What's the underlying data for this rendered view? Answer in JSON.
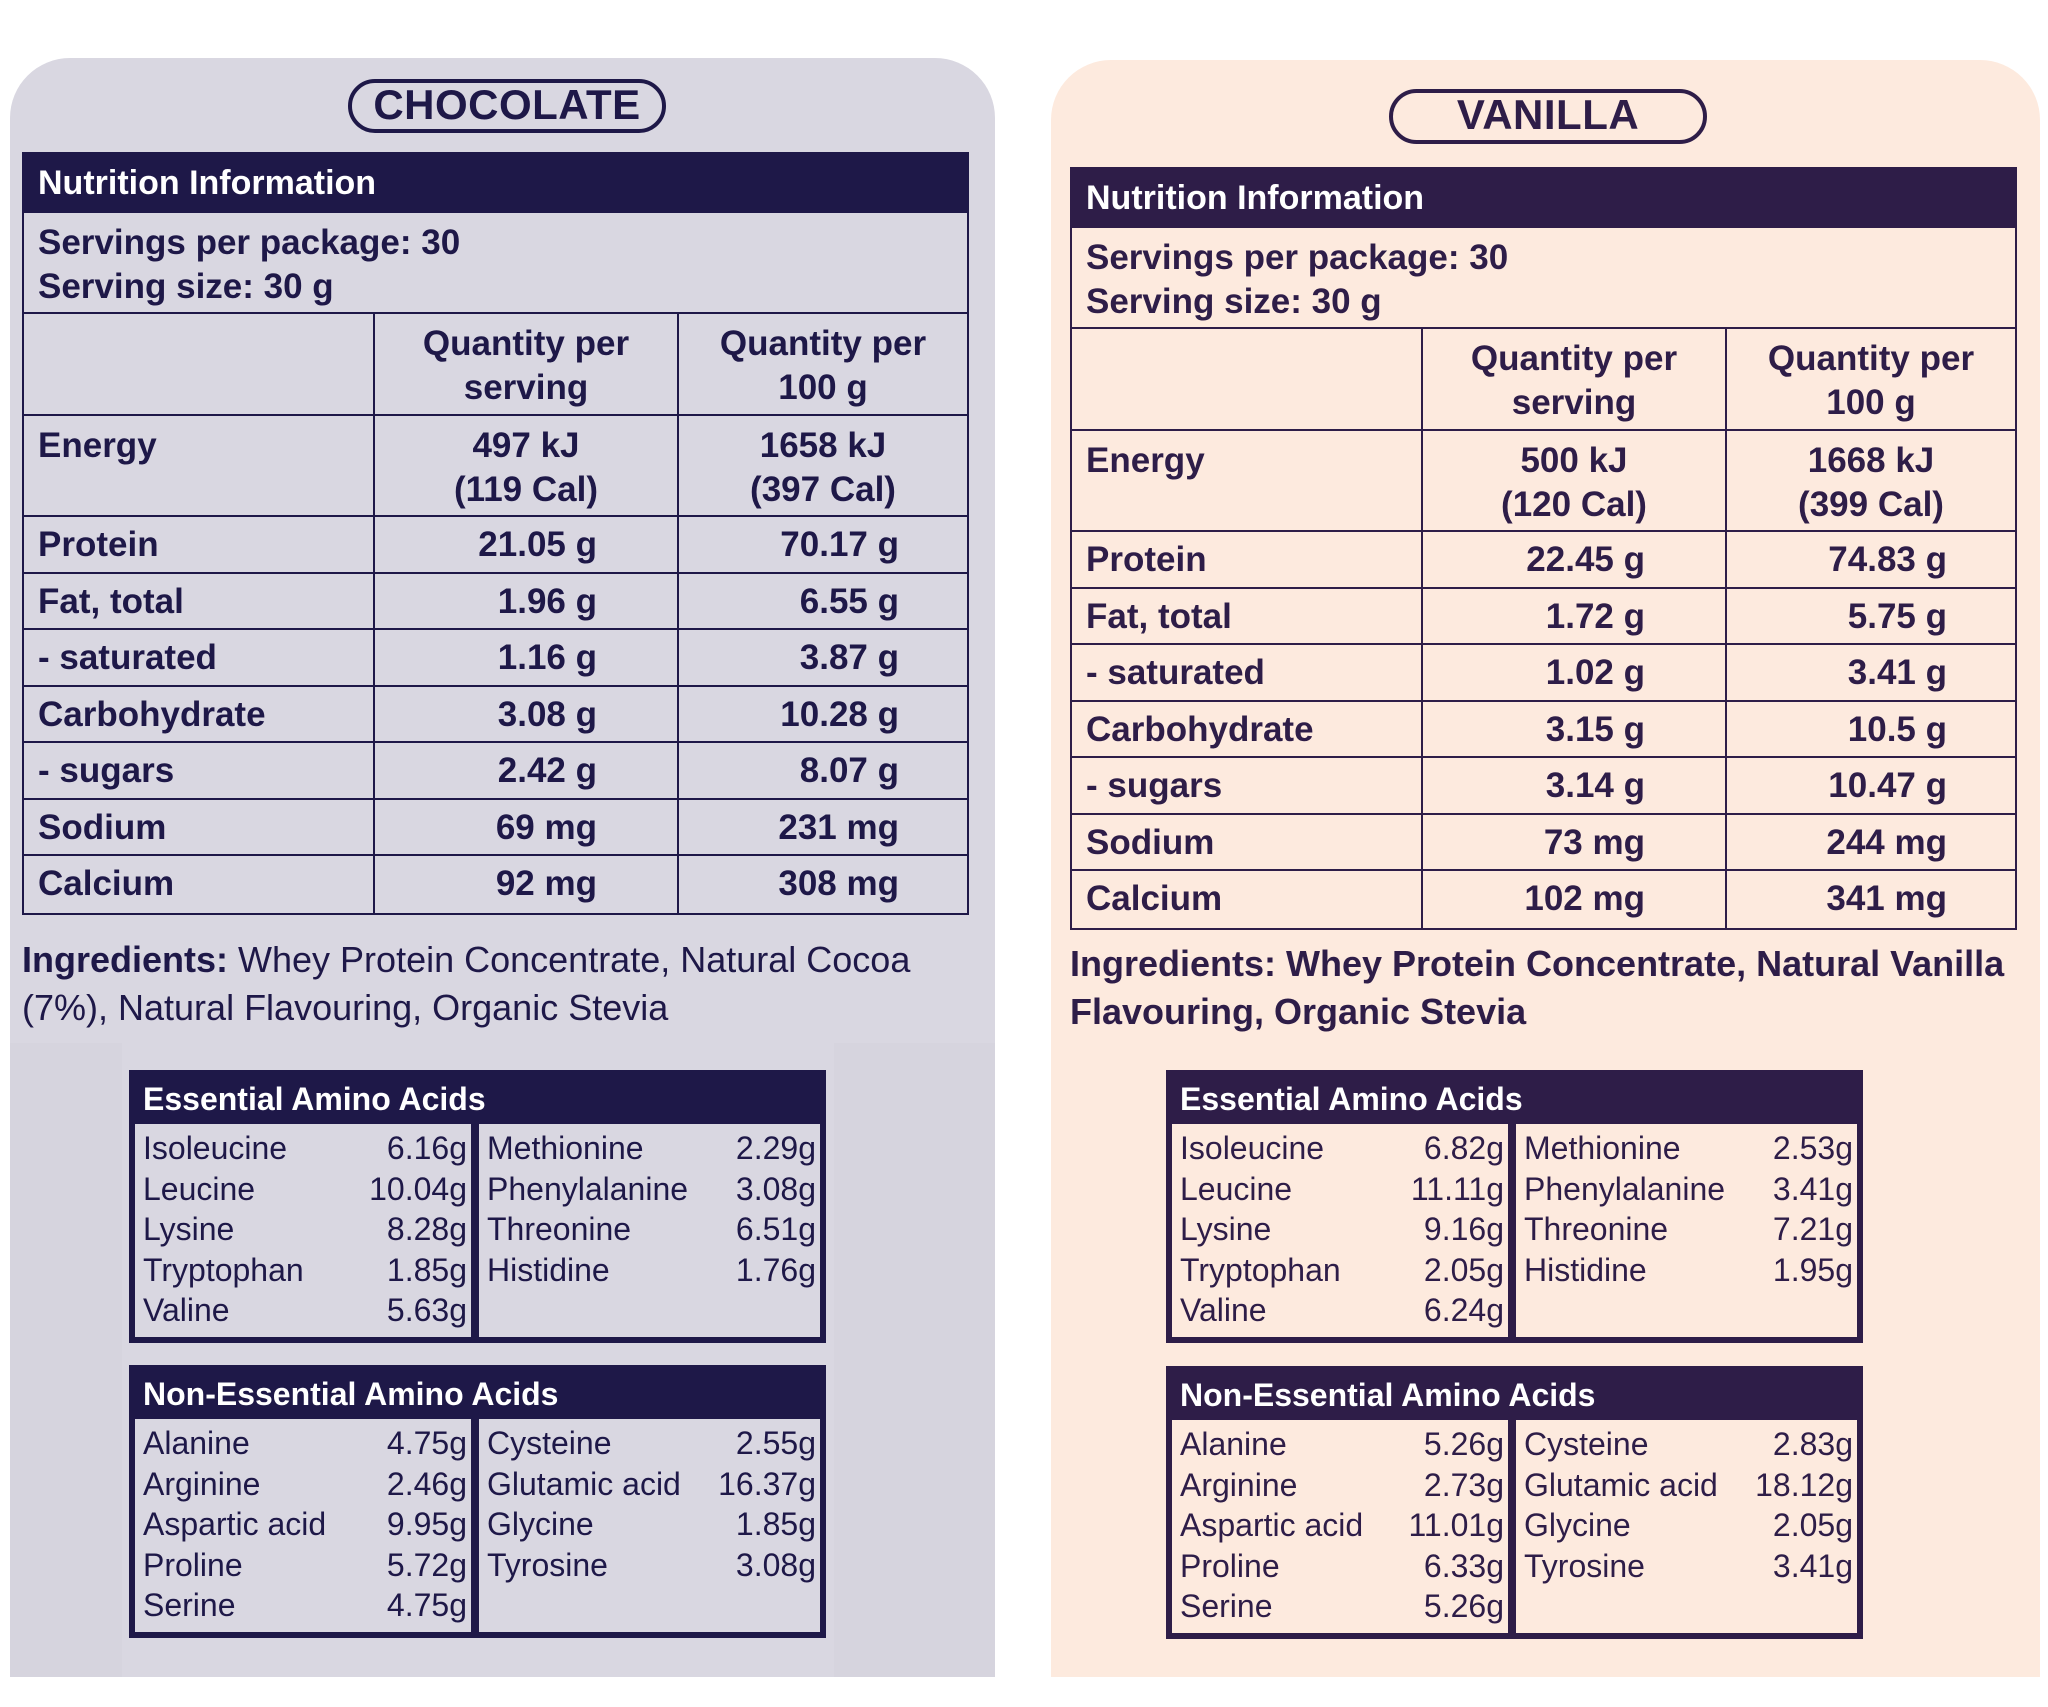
{
  "panels": {
    "choc": {
      "flavour": "CHOCOLATE",
      "colors": {
        "background": "#d9d7e1",
        "ink": "#1e1848"
      },
      "nutrition": {
        "title": "Nutrition Information",
        "servings_per_package": "Servings per package: 30",
        "serving_size": "Serving size: 30 g",
        "col_serving": [
          "Quantity per",
          "serving"
        ],
        "col_100g": [
          "Quantity per",
          "100 g"
        ],
        "energy": {
          "label": "Energy",
          "serving": [
            "497 kJ",
            "(119 Cal)"
          ],
          "per100": [
            "1658 kJ",
            "(397 Cal)"
          ]
        },
        "rows": [
          {
            "label": "Protein",
            "serving": "21.05 g",
            "per100": "70.17 g"
          },
          {
            "label": "Fat, total",
            "serving": "1.96 g",
            "per100": "6.55 g"
          },
          {
            "label": "- saturated",
            "serving": "1.16 g",
            "per100": "3.87 g"
          },
          {
            "label": "Carbohydrate",
            "serving": "3.08 g",
            "per100": "10.28 g"
          },
          {
            "label": "- sugars",
            "serving": "2.42 g",
            "per100": "8.07 g"
          },
          {
            "label": "Sodium",
            "serving": "69 mg",
            "per100": "231 mg"
          },
          {
            "label": "Calcium",
            "serving": "92 mg",
            "per100": "308 mg"
          }
        ]
      },
      "ingredients": {
        "label": "Ingredients:",
        "text": " Whey Protein Concentrate, Natural Cocoa (7%), Natural Flavouring, Organic Stevia"
      },
      "essential": {
        "title": "Essential Amino Acids",
        "left": [
          [
            "Isoleucine",
            "6.16g"
          ],
          [
            "Leucine",
            "10.04g"
          ],
          [
            "Lysine",
            "8.28g"
          ],
          [
            "Tryptophan",
            "1.85g"
          ],
          [
            "Valine",
            "5.63g"
          ]
        ],
        "right": [
          [
            "Methionine",
            "2.29g"
          ],
          [
            "Phenylalanine",
            "3.08g"
          ],
          [
            "Threonine",
            "6.51g"
          ],
          [
            "Histidine",
            "1.76g"
          ]
        ]
      },
      "nonessential": {
        "title": "Non-Essential Amino Acids",
        "left": [
          [
            "Alanine",
            "4.75g"
          ],
          [
            "Arginine",
            "2.46g"
          ],
          [
            "Aspartic acid",
            "9.95g"
          ],
          [
            "Proline",
            "5.72g"
          ],
          [
            "Serine",
            "4.75g"
          ]
        ],
        "right": [
          [
            "Cysteine",
            "2.55g"
          ],
          [
            "Glutamic acid",
            "16.37g"
          ],
          [
            "Glycine",
            "1.85g"
          ],
          [
            "Tyrosine",
            "3.08g"
          ]
        ]
      }
    },
    "van": {
      "flavour": "VANILLA",
      "colors": {
        "background": "#fdeade",
        "ink": "#2e1d48"
      },
      "nutrition": {
        "title": "Nutrition Information",
        "servings_per_package": "Servings per package: 30",
        "serving_size": "Serving size: 30 g",
        "col_serving": [
          "Quantity per",
          "serving"
        ],
        "col_100g": [
          "Quantity per",
          "100 g"
        ],
        "energy": {
          "label": "Energy",
          "serving": [
            "500 kJ",
            "(120 Cal)"
          ],
          "per100": [
            "1668 kJ",
            "(399 Cal)"
          ]
        },
        "rows": [
          {
            "label": "Protein",
            "serving": "22.45 g",
            "per100": "74.83 g"
          },
          {
            "label": "Fat, total",
            "serving": "1.72 g",
            "per100": "5.75 g"
          },
          {
            "label": "- saturated",
            "serving": "1.02 g",
            "per100": "3.41 g"
          },
          {
            "label": "Carbohydrate",
            "serving": "3.15 g",
            "per100": "10.5 g"
          },
          {
            "label": "- sugars",
            "serving": "3.14 g",
            "per100": "10.47 g"
          },
          {
            "label": "Sodium",
            "serving": "73 mg",
            "per100": "244 mg"
          },
          {
            "label": "Calcium",
            "serving": "102 mg",
            "per100": "341 mg"
          }
        ]
      },
      "ingredients": {
        "label": "Ingredients:",
        "text": " Whey Protein Concentrate, Natural Vanilla Flavouring, Organic Stevia"
      },
      "essential": {
        "title": "Essential Amino Acids",
        "left": [
          [
            "Isoleucine",
            "6.82g"
          ],
          [
            "Leucine",
            "11.11g"
          ],
          [
            "Lysine",
            "9.16g"
          ],
          [
            "Tryptophan",
            "2.05g"
          ],
          [
            "Valine",
            "6.24g"
          ]
        ],
        "right": [
          [
            "Methionine",
            "2.53g"
          ],
          [
            "Phenylalanine",
            "3.41g"
          ],
          [
            "Threonine",
            "7.21g"
          ],
          [
            "Histidine",
            "1.95g"
          ]
        ]
      },
      "nonessential": {
        "title": "Non-Essential Amino Acids",
        "left": [
          [
            "Alanine",
            "5.26g"
          ],
          [
            "Arginine",
            "2.73g"
          ],
          [
            "Aspartic acid",
            "11.01g"
          ],
          [
            "Proline",
            "6.33g"
          ],
          [
            "Serine",
            "5.26g"
          ]
        ],
        "right": [
          [
            "Cysteine",
            "2.83g"
          ],
          [
            "Glutamic acid",
            "18.12g"
          ],
          [
            "Glycine",
            "2.05g"
          ],
          [
            "Tyrosine",
            "3.41g"
          ]
        ]
      }
    }
  }
}
